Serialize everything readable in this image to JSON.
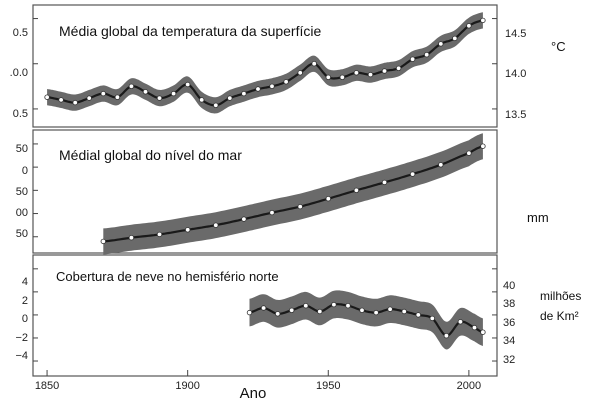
{
  "figure": {
    "xlabel": "Ano",
    "x_ticks": [
      1850,
      1900,
      1950,
      2000
    ],
    "xlim": [
      1845,
      2010
    ]
  },
  "chart_data": [
    {
      "type": "line",
      "title": "Média global da temperatura da superfície",
      "left_axis_labels": [
        "0.5",
        ".0.0",
        "0.5"
      ],
      "left_axis_values": [
        0.5,
        0.0,
        -0.5
      ],
      "right_ticks": [
        "14.5",
        "14.0",
        "13.5"
      ],
      "right_axis_values": [
        14.5,
        14.0,
        13.5
      ],
      "right_unit": "°C",
      "ylim": [
        -0.7,
        0.65
      ],
      "band_halfwidth": 0.09,
      "grid": false,
      "series": [
        {
          "x": [
            1850,
            1855,
            1860,
            1865,
            1870,
            1875,
            1880,
            1885,
            1890,
            1895,
            1900,
            1905,
            1910,
            1915,
            1920,
            1925,
            1930,
            1935,
            1940,
            1945,
            1950,
            1955,
            1960,
            1965,
            1970,
            1975,
            1980,
            1985,
            1990,
            1995,
            2000,
            2005
          ],
          "values": [
            -0.37,
            -0.4,
            -0.43,
            -0.38,
            -0.33,
            -0.37,
            -0.25,
            -0.31,
            -0.38,
            -0.33,
            -0.23,
            -0.4,
            -0.46,
            -0.38,
            -0.33,
            -0.28,
            -0.25,
            -0.2,
            -0.1,
            0.0,
            -0.15,
            -0.15,
            -0.1,
            -0.12,
            -0.08,
            -0.05,
            0.05,
            0.1,
            0.22,
            0.28,
            0.42,
            0.48
          ]
        }
      ]
    },
    {
      "type": "line",
      "title": "Médial global do nível do mar",
      "left_axis_labels": [
        "50",
        "0",
        "50",
        "00",
        "50"
      ],
      "left_axis_values": [
        50,
        0,
        -50,
        -100,
        -150
      ],
      "right_unit": "mm",
      "ylim": [
        -185,
        80
      ],
      "band_halfwidth": 28,
      "grid": false,
      "series": [
        {
          "x": [
            1870,
            1880,
            1890,
            1900,
            1910,
            1920,
            1930,
            1940,
            1950,
            1960,
            1970,
            1980,
            1990,
            2000,
            2005
          ],
          "values": [
            -160,
            -152,
            -145,
            -135,
            -125,
            -112,
            -98,
            -85,
            -68,
            -50,
            -33,
            -15,
            5,
            30,
            45
          ]
        }
      ]
    },
    {
      "type": "line",
      "title": "Cobertura de neve no hemisfério norte",
      "left_axis_labels": [
        "4",
        "2",
        "0",
        "−2",
        "−4"
      ],
      "left_axis_values": [
        4,
        2,
        0,
        -2,
        -4
      ],
      "right_ticks": [
        "40",
        "38",
        "36",
        "34",
        "32"
      ],
      "right_axis_values": [
        40,
        38,
        36,
        34,
        32
      ],
      "right_unit": "milhões de Km²",
      "ylim": [
        -5.3,
        5.2
      ],
      "band_halfwidth": 1.2,
      "grid": false,
      "series": [
        {
          "x": [
            1922,
            1927,
            1932,
            1937,
            1942,
            1947,
            1952,
            1957,
            1962,
            1967,
            1972,
            1977,
            1982,
            1987,
            1992,
            1997,
            2002,
            2005
          ],
          "values": [
            0.2,
            0.6,
            0.1,
            0.4,
            0.8,
            0.3,
            0.9,
            0.8,
            0.4,
            0.2,
            0.5,
            0.3,
            0.0,
            -0.3,
            -1.8,
            -0.6,
            -1.1,
            -1.5
          ]
        }
      ]
    }
  ]
}
